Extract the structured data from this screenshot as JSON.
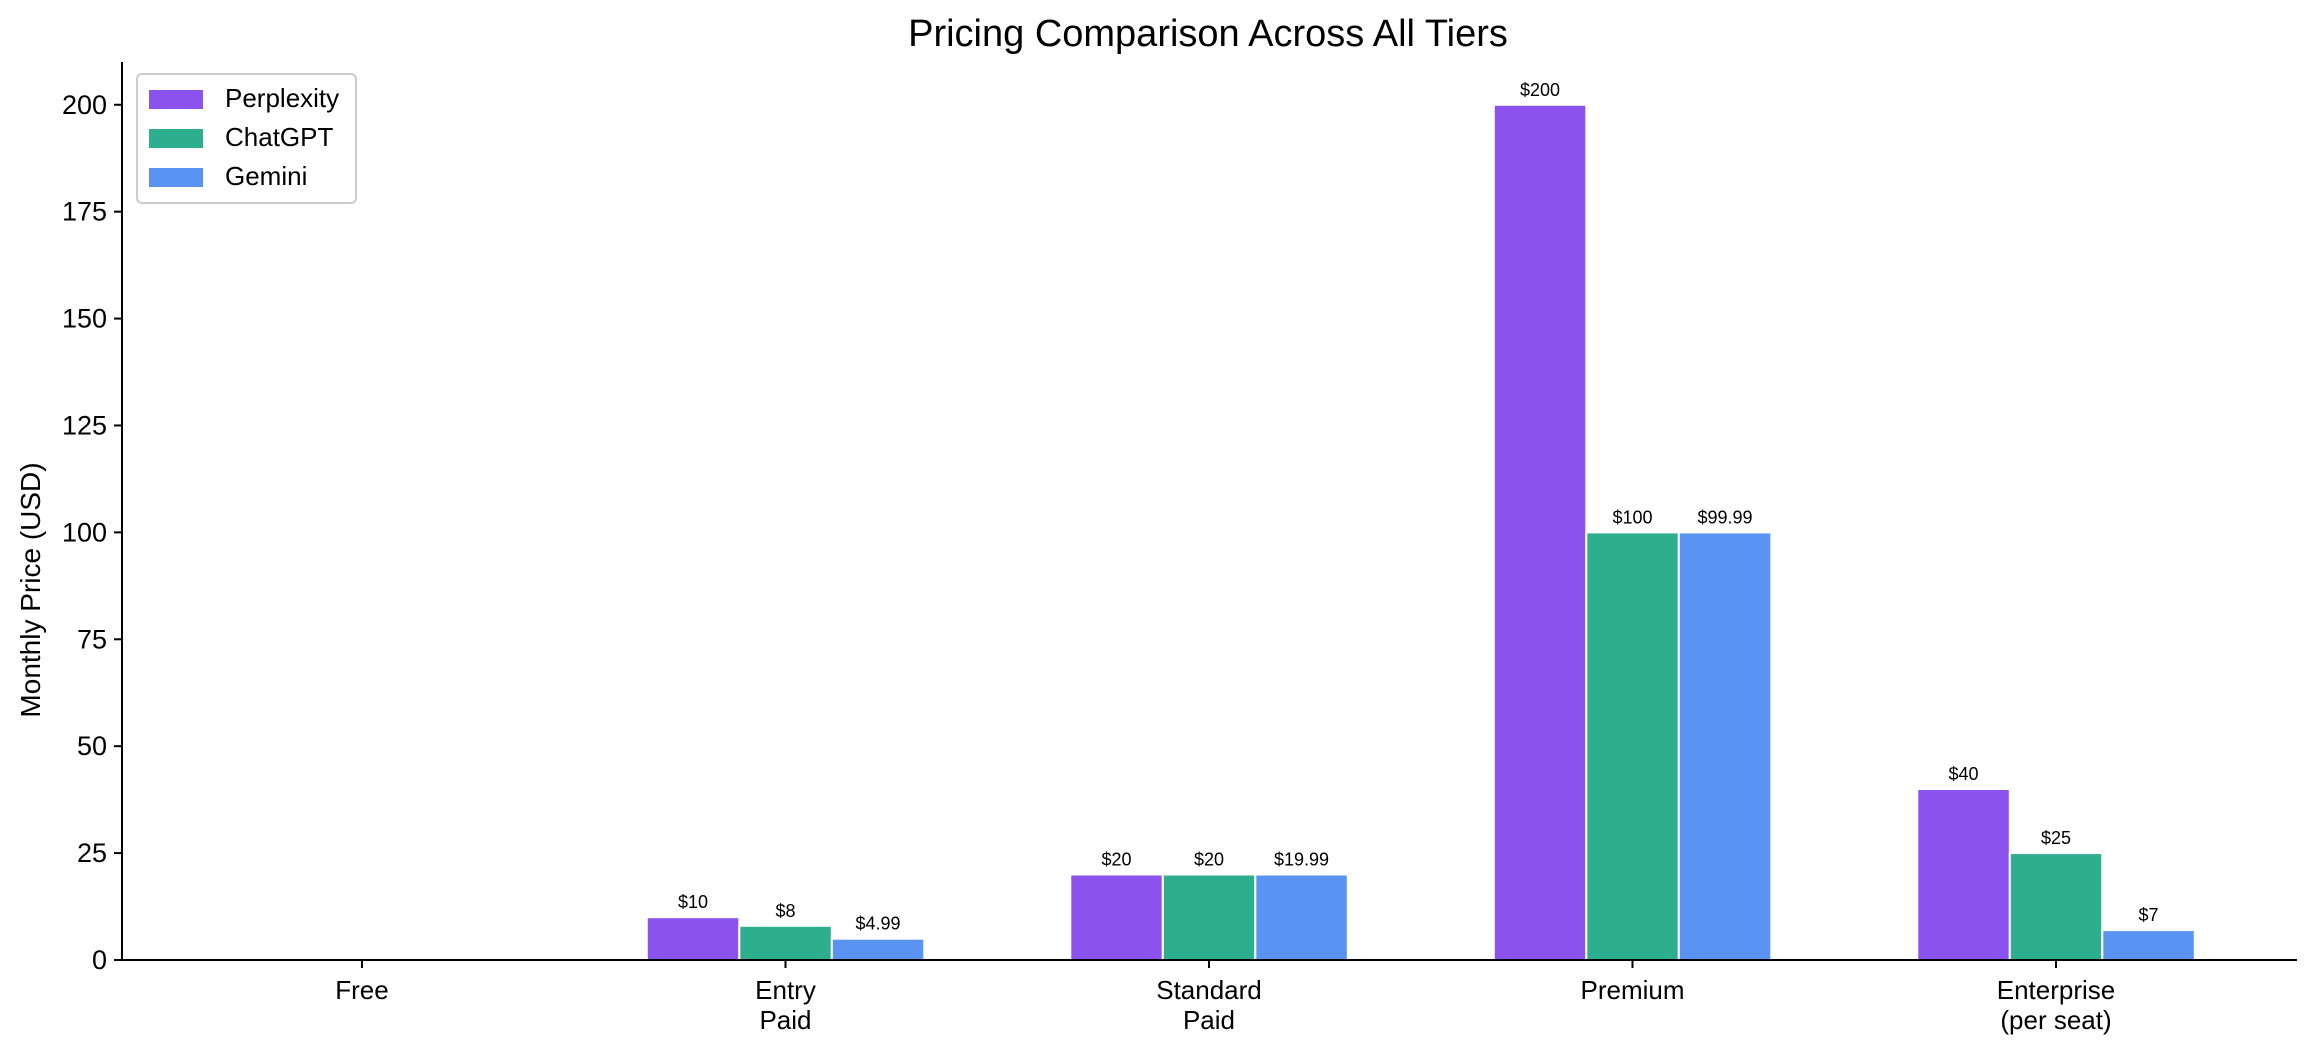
{
  "chart_data": {
    "type": "bar",
    "title": "Pricing Comparison Across All Tiers",
    "xlabel": "",
    "ylabel": "Monthly Price (USD)",
    "ylim": [
      0,
      210
    ],
    "yticks": [
      0,
      25,
      50,
      75,
      100,
      125,
      150,
      175,
      200
    ],
    "categories": [
      [
        "Free"
      ],
      [
        "Entry",
        "Paid"
      ],
      [
        "Standard",
        "Paid"
      ],
      [
        "Premium"
      ],
      [
        "Enterprise",
        "(per seat)"
      ]
    ],
    "series": [
      {
        "name": "Perplexity",
        "color": "#8b52ed",
        "values": [
          0,
          10,
          20,
          200,
          40
        ],
        "labels": [
          "",
          "$10",
          "$20",
          "$200",
          "$40"
        ]
      },
      {
        "name": "ChatGPT",
        "color": "#2daf8f",
        "values": [
          0,
          8,
          20,
          100,
          25
        ],
        "labels": [
          "",
          "$8",
          "$20",
          "$100",
          "$25"
        ]
      },
      {
        "name": "Gemini",
        "color": "#5a93f2",
        "values": [
          0,
          4.99,
          19.99,
          99.99,
          7
        ],
        "labels": [
          "",
          "$4.99",
          "$19.99",
          "$99.99",
          "$7"
        ]
      }
    ],
    "legend": "top-left",
    "grid": false
  }
}
